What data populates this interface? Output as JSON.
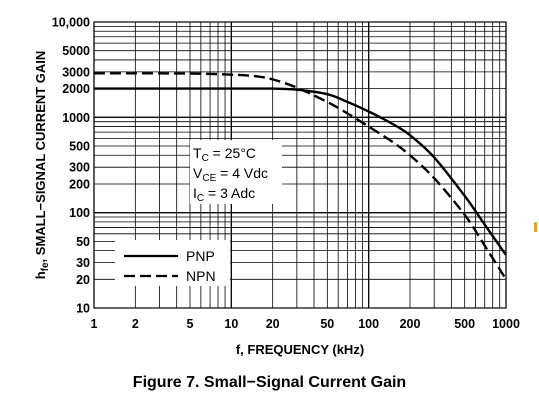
{
  "chart_data": {
    "type": "line",
    "log_x": true,
    "log_y": true,
    "xlim": [
      1,
      1000
    ],
    "ylim": [
      10,
      10000
    ],
    "xlabel": "f, FREQUENCY (kHz)",
    "ylabel_main": "h",
    "ylabel_sub": "fe",
    "ylabel_rest": ", SMALL−SIGNAL CURRENT GAIN",
    "x_ticks": [
      {
        "v": 1,
        "label": "1"
      },
      {
        "v": 2,
        "label": "2"
      },
      {
        "v": 5,
        "label": "5"
      },
      {
        "v": 10,
        "label": "10"
      },
      {
        "v": 20,
        "label": "20"
      },
      {
        "v": 50,
        "label": "50"
      },
      {
        "v": 100,
        "label": "100"
      },
      {
        "v": 200,
        "label": "200"
      },
      {
        "v": 500,
        "label": "500"
      },
      {
        "v": 1000,
        "label": "1000"
      }
    ],
    "y_ticks": [
      {
        "v": 10,
        "label": "10"
      },
      {
        "v": 20,
        "label": "20"
      },
      {
        "v": 30,
        "label": "30"
      },
      {
        "v": 50,
        "label": "50"
      },
      {
        "v": 100,
        "label": "100"
      },
      {
        "v": 200,
        "label": "200"
      },
      {
        "v": 300,
        "label": "300"
      },
      {
        "v": 500,
        "label": "500"
      },
      {
        "v": 1000,
        "label": "1000"
      },
      {
        "v": 2000,
        "label": "2000"
      },
      {
        "v": 3000,
        "label": "3000"
      },
      {
        "v": 5000,
        "label": "5000"
      },
      {
        "v": 10000,
        "label": "10,000"
      }
    ],
    "grid": true,
    "series": [
      {
        "name": "PNP",
        "style": "solid",
        "x": [
          1,
          5,
          10,
          20,
          30,
          50,
          70,
          100,
          150,
          200,
          300,
          500,
          700,
          1000
        ],
        "y": [
          2000,
          2000,
          2000,
          2000,
          1950,
          1750,
          1450,
          1150,
          850,
          650,
          380,
          150,
          75,
          36
        ]
      },
      {
        "name": "NPN",
        "style": "dashed",
        "x": [
          1,
          5,
          10,
          15,
          20,
          30,
          50,
          70,
          100,
          150,
          200,
          300,
          500,
          700,
          1000
        ],
        "y": [
          2900,
          2880,
          2800,
          2700,
          2500,
          2050,
          1450,
          1100,
          800,
          550,
          400,
          230,
          95,
          45,
          20
        ]
      }
    ],
    "conditions": [
      {
        "main": "T",
        "sub": "C",
        "rest": " = 25°C"
      },
      {
        "main": "V",
        "sub": "CE",
        "rest": " = 4 Vdc"
      },
      {
        "main": "I",
        "sub": "C",
        "rest": " = 3 Adc"
      }
    ],
    "legend_position": "lower-left"
  },
  "caption": "Figure 7. Small−Signal Current Gain",
  "colors": {
    "line": "#000000",
    "background": "#ffffff"
  }
}
